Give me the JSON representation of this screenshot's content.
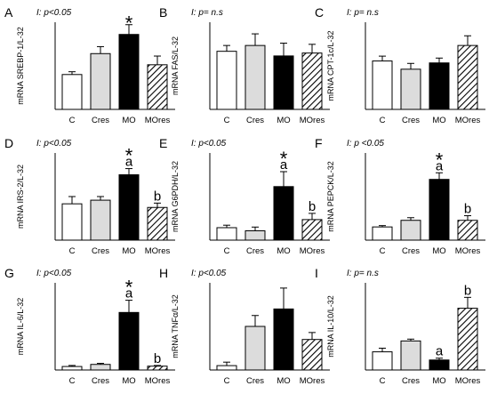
{
  "bar_colors": {
    "C": "#ffffff",
    "Cres": "#dcdcdc",
    "MO": "#000000",
    "MOres": "hatched"
  },
  "chart_data": [
    {
      "type": "bar",
      "panel": "A",
      "stat": "I: p<0.05",
      "ylabel": "mRNA SREBP-1/L-32",
      "categories": [
        "C",
        "Cres",
        "MO",
        "MOres"
      ],
      "values": [
        1.0,
        1.6,
        2.15,
        1.28
      ],
      "errors": [
        0.08,
        0.2,
        0.28,
        0.25
      ],
      "ymax": 2.5,
      "annotations": [
        {
          "bar": 2,
          "star": "*",
          "letter": ""
        }
      ]
    },
    {
      "type": "bar",
      "panel": "B",
      "stat": "I: p= n.s",
      "ylabel": "mRNA FAS/L-32",
      "categories": [
        "C",
        "Cres",
        "MO",
        "MOres"
      ],
      "values": [
        1.0,
        1.1,
        0.92,
        0.97
      ],
      "errors": [
        0.1,
        0.2,
        0.22,
        0.15
      ],
      "ymax": 1.5,
      "annotations": []
    },
    {
      "type": "bar",
      "panel": "C",
      "stat": "I: p= n.s",
      "ylabel": "mRNA CPT-1c/L-32",
      "categories": [
        "C",
        "Cres",
        "MO",
        "MOres"
      ],
      "values": [
        1.0,
        0.83,
        0.96,
        1.32
      ],
      "errors": [
        0.1,
        0.12,
        0.1,
        0.2
      ],
      "ymax": 1.8,
      "annotations": []
    },
    {
      "type": "bar",
      "panel": "D",
      "stat": "I: p<0.05",
      "ylabel": "mRNA IRS-2/L-32",
      "categories": [
        "C",
        "Cres",
        "MO",
        "MOres"
      ],
      "values": [
        1.0,
        1.1,
        1.8,
        0.9
      ],
      "errors": [
        0.2,
        0.1,
        0.17,
        0.12
      ],
      "ymax": 2.4,
      "annotations": [
        {
          "bar": 2,
          "star": "*",
          "letter": "a"
        },
        {
          "bar": 3,
          "star": "",
          "letter": "b"
        }
      ]
    },
    {
      "type": "bar",
      "panel": "E",
      "stat": "I: p<0.05",
      "ylabel": "mRNA G6PDH/L-32",
      "categories": [
        "C",
        "Cres",
        "MO",
        "MOres"
      ],
      "values": [
        1.0,
        0.75,
        4.3,
        1.65
      ],
      "errors": [
        0.2,
        0.3,
        1.2,
        0.5
      ],
      "ymax": 7.0,
      "annotations": [
        {
          "bar": 2,
          "star": "*",
          "letter": "a"
        },
        {
          "bar": 3,
          "star": "",
          "letter": "b"
        }
      ]
    },
    {
      "type": "bar",
      "panel": "F",
      "stat": "I: p <0.05",
      "ylabel": "mRNA PEPCK/L-32",
      "categories": [
        "C",
        "Cres",
        "MO",
        "MOres"
      ],
      "values": [
        1.0,
        1.5,
        4.6,
        1.5
      ],
      "errors": [
        0.1,
        0.2,
        0.5,
        0.35
      ],
      "ymax": 6.6,
      "annotations": [
        {
          "bar": 2,
          "star": "*",
          "letter": "a"
        },
        {
          "bar": 3,
          "star": "",
          "letter": "b"
        }
      ]
    },
    {
      "type": "bar",
      "panel": "G",
      "stat": "I: p<0.05",
      "ylabel": "mRNA IL-6/L-32",
      "categories": [
        "C",
        "Cres",
        "MO",
        "MOres"
      ],
      "values": [
        1.0,
        1.6,
        16.5,
        1.1
      ],
      "errors": [
        0.3,
        0.3,
        3.5,
        0.2
      ],
      "ymax": 25,
      "annotations": [
        {
          "bar": 2,
          "star": "*",
          "letter": "a"
        },
        {
          "bar": 3,
          "star": "",
          "letter": "b"
        }
      ]
    },
    {
      "type": "bar",
      "panel": "H",
      "stat": "I: p<0.05",
      "ylabel": "mRNA TNFα/L-32",
      "categories": [
        "C",
        "Cres",
        "MO",
        "MOres"
      ],
      "values": [
        1.0,
        10.0,
        14.0,
        7.0
      ],
      "errors": [
        0.8,
        2.5,
        4.8,
        1.6
      ],
      "ymax": 20,
      "annotations": []
    },
    {
      "type": "bar",
      "panel": "I",
      "stat": "I: p= n.s",
      "ylabel": "mRNA IL-10/L-32",
      "categories": [
        "C",
        "Cres",
        "MO",
        "MOres"
      ],
      "values": [
        1.0,
        1.6,
        0.55,
        3.4
      ],
      "errors": [
        0.2,
        0.1,
        0.1,
        0.6
      ],
      "ymax": 4.8,
      "annotations": [
        {
          "bar": 2,
          "star": "",
          "letter": "a"
        },
        {
          "bar": 3,
          "star": "",
          "letter": "b"
        }
      ]
    }
  ]
}
